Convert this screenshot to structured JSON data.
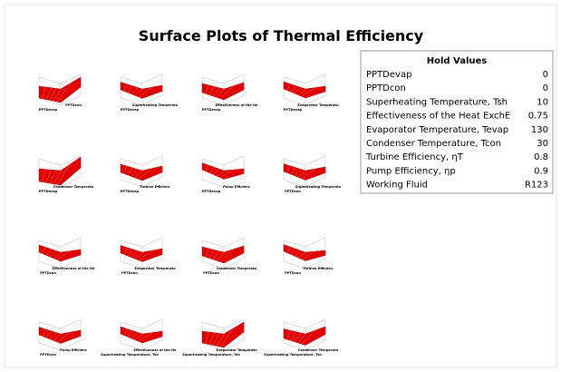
{
  "title": "Surface Plots of Thermal Efficiency",
  "hold_values": {
    "heading": "Hold Values",
    "rows": [
      [
        "PPTDevap",
        "0"
      ],
      [
        "PPTDcon",
        "0"
      ],
      [
        "Superheating Temperature, Tsh",
        "10"
      ],
      [
        "Effectiveness of the Heat ExchE",
        "0.75"
      ],
      [
        "Evaporator Temperature, Tevap",
        "130"
      ],
      [
        "Condenser Temperature, Tcon",
        "30"
      ],
      [
        "Turbine Efficiency, ηT",
        "0.8"
      ],
      [
        "Pump Efficiency, ηp",
        "0.9"
      ],
      [
        "Working Fluid",
        "R123"
      ]
    ]
  },
  "plots": [
    {
      "x_label": "PPTDevap",
      "y_label": "PPTDcon"
    },
    {
      "x_label": "PPTDevap",
      "y_label": "Superheating Temperatu"
    },
    {
      "x_label": "PPTDevap",
      "y_label": "Effectiveness of the He"
    },
    {
      "x_label": "PPTDevap",
      "y_label": "Evaporator Temperatu"
    },
    {
      "x_label": "PPTDevap",
      "y_label": "Condenser Temperatu"
    },
    {
      "x_label": "PPTDevap",
      "y_label": "Turbine Efficienc"
    },
    {
      "x_label": "PPTDevap",
      "y_label": "Pump Efficienc"
    },
    {
      "x_label": "PPTDcon",
      "y_label": "Superheating Temperatu"
    },
    {
      "x_label": "PPTDcon",
      "y_label": "Effectiveness of the He"
    },
    {
      "x_label": "PPTDcon",
      "y_label": "Evaporator Temperatu"
    },
    {
      "x_label": "PPTDcon",
      "y_label": "Condenser Temperatu"
    },
    {
      "x_label": "PPTDcon",
      "y_label": "Turbine Efficienc"
    },
    {
      "x_label": "PPTDcon",
      "y_label": "Pump Efficienc"
    },
    {
      "x_label": "Superheating Temperature, Tsh",
      "y_label": "Effectiveness of the He"
    },
    {
      "x_label": "Superheating Temperature, Tsh",
      "y_label": "Evaporator Temperatu"
    },
    {
      "x_label": "Superheating Temperature, Tsh",
      "y_label": "Condenser Temperatu"
    }
  ]
}
